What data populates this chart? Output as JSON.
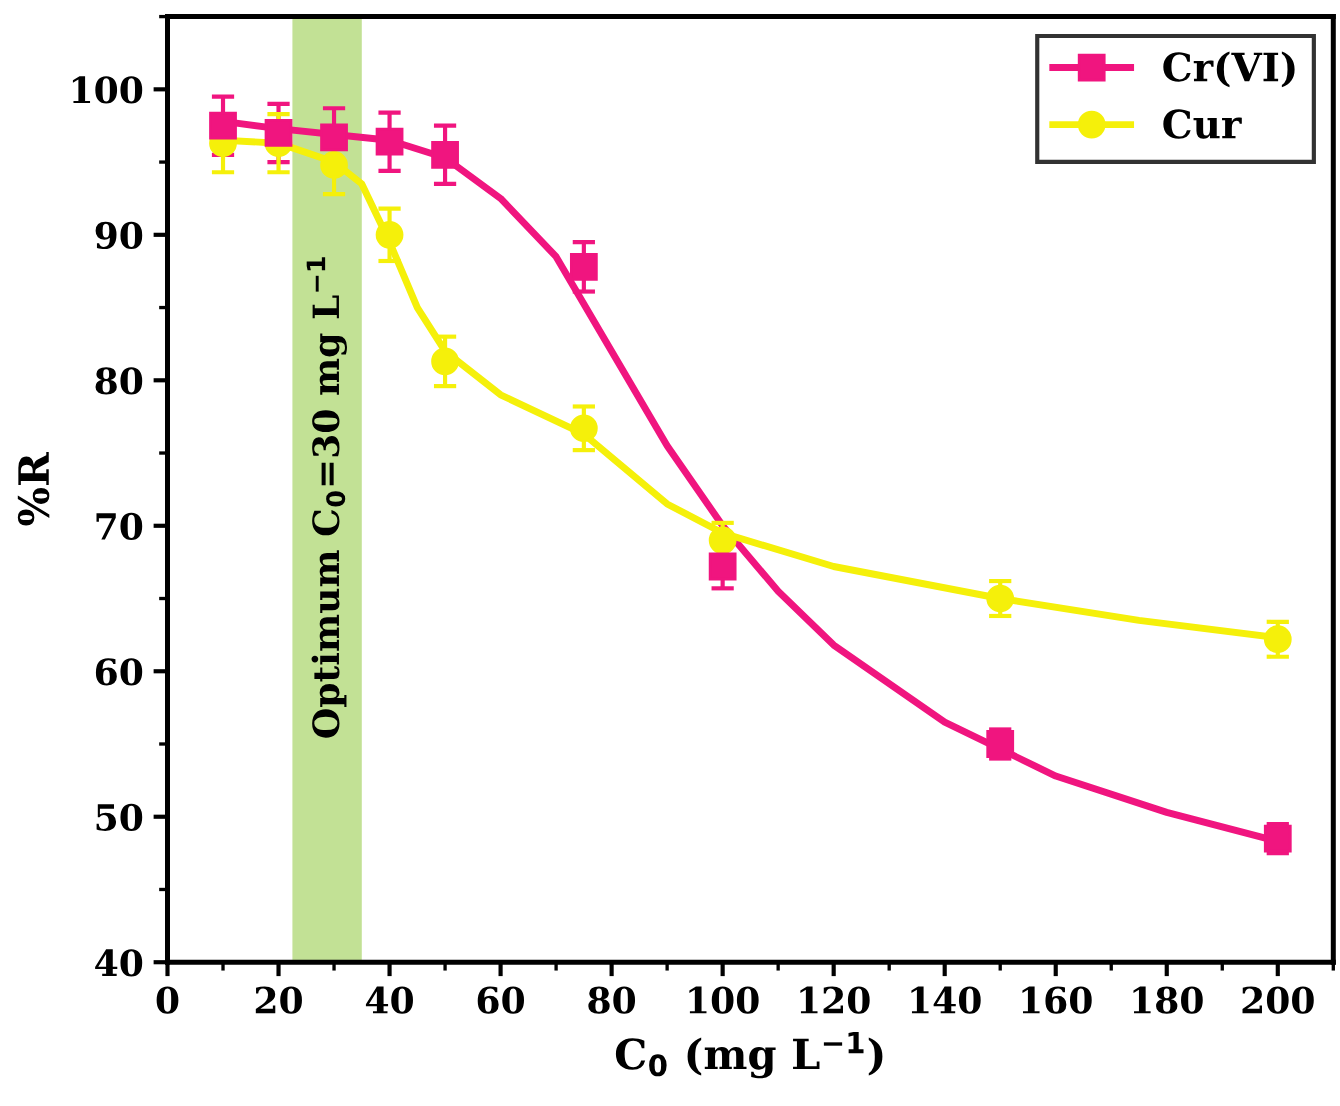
{
  "chart_data": {
    "type": "scatter",
    "xlabel": "C$_{0}$ (mg L$^{−1}$)",
    "ylabel": "%R",
    "x": [
      10,
      20,
      30,
      40,
      50,
      75,
      100,
      150,
      200
    ],
    "series": [
      {
        "name": "Cr(VI)",
        "color": "#f0157f",
        "marker": "square",
        "values": [
          97.5,
          97,
          96.7,
          96.4,
          95.5,
          87.8,
          67.2,
          55,
          48.5
        ],
        "errors": [
          2,
          2,
          2,
          2,
          2,
          1.7,
          1.5,
          1,
          1
        ]
      },
      {
        "name": "Cur",
        "color": "#f5f00a",
        "marker": "circle",
        "values": [
          96.3,
          96.3,
          94.8,
          90,
          81.3,
          76.7,
          69,
          65,
          62.2
        ],
        "errors": [
          2,
          2,
          2,
          1.8,
          1.7,
          1.5,
          1.2,
          1.2,
          1.2
        ]
      },
      {
        "type": "line",
        "color": "#f0157f",
        "x": [
          10,
          20,
          30,
          40,
          50,
          60,
          70,
          80,
          90,
          100,
          110,
          120,
          140,
          160,
          180,
          200
        ],
        "values": [
          97.8,
          97.3,
          96.9,
          96.5,
          95.3,
          92.5,
          88.5,
          82,
          75.5,
          70,
          65.5,
          61.8,
          56.5,
          52.8,
          50.3,
          48.3
        ]
      },
      {
        "type": "line",
        "color": "#f5f00a",
        "x": [
          10,
          20,
          30,
          35,
          40,
          45,
          50,
          60,
          75,
          90,
          100,
          120,
          150,
          175,
          200
        ],
        "values": [
          96.5,
          96.3,
          95,
          93.5,
          89.5,
          85,
          82,
          79,
          76.3,
          71.5,
          69.5,
          67.2,
          65,
          63.5,
          62.3
        ]
      }
    ],
    "bands": [
      {
        "axis": "x",
        "from": 22.5,
        "to": 35,
        "label": "Optimum C$_{0}$=30 mg L$^{−1}$",
        "color": "#a8d468"
      }
    ],
    "xlim": [
      0,
      210
    ],
    "ylim": [
      40,
      105
    ],
    "xticks": [
      0,
      20,
      40,
      60,
      80,
      100,
      120,
      140,
      160,
      180,
      200
    ],
    "yticks": [
      40,
      50,
      60,
      70,
      80,
      90,
      100
    ],
    "grid": false,
    "legend": "top right",
    "line_style": "solid"
  }
}
